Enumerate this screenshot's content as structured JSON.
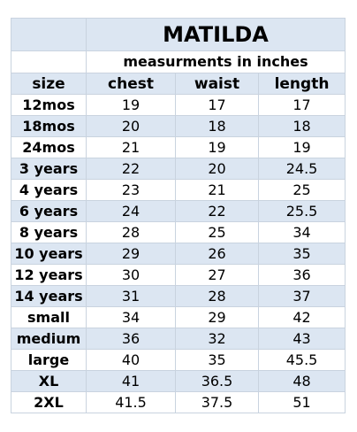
{
  "title": "MATILDA",
  "subtitle": "measurments in inches",
  "table": {
    "header": [
      "size",
      "chest",
      "waist",
      "length"
    ],
    "rows": [
      [
        "12mos",
        19,
        17,
        17
      ],
      [
        "18mos",
        20,
        18,
        18
      ],
      [
        "24mos",
        21,
        19,
        19
      ],
      [
        "3 years",
        22,
        20,
        24.5
      ],
      [
        "4 years",
        23,
        21,
        25
      ],
      [
        "6 years",
        24,
        22,
        25.5
      ],
      [
        "8 years",
        28,
        25,
        34
      ],
      [
        "10 years",
        29,
        26,
        35
      ],
      [
        "12 years",
        30,
        27,
        36
      ],
      [
        "14 years",
        31,
        28,
        37
      ],
      [
        "small",
        34,
        29,
        42
      ],
      [
        "medium",
        36,
        32,
        43
      ],
      [
        "large",
        40,
        35,
        45.5
      ],
      [
        "XL",
        41,
        36.5,
        48
      ],
      [
        "2XL",
        41.5,
        37.5,
        51
      ]
    ]
  }
}
